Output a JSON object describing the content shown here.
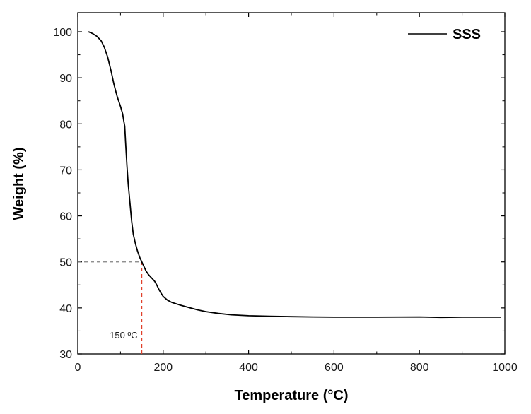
{
  "chart_data": {
    "type": "line",
    "xlabel": "Temperature (°C)",
    "ylabel": "Weight (%)",
    "xlim": [
      0,
      1000
    ],
    "ylim": [
      30,
      102
    ],
    "x_ticks": [
      0,
      200,
      400,
      600,
      800,
      1000
    ],
    "y_ticks": [
      30,
      40,
      50,
      60,
      70,
      80,
      90,
      100
    ],
    "grid": false,
    "legend_position": "top-right",
    "series": [
      {
        "name": "SSS",
        "color": "#000000",
        "x": [
          25,
          35,
          45,
          55,
          62,
          70,
          78,
          85,
          92,
          100,
          105,
          108,
          110,
          112,
          115,
          118,
          122,
          126,
          130,
          135,
          140,
          145,
          150,
          155,
          160,
          165,
          170,
          175,
          180,
          185,
          190,
          195,
          200,
          210,
          220,
          240,
          260,
          280,
          300,
          330,
          360,
          400,
          450,
          500,
          550,
          600,
          700,
          800,
          850,
          900,
          990
        ],
        "y": [
          100,
          99.6,
          99,
          98,
          96.7,
          94.5,
          91.5,
          88.5,
          86,
          83.8,
          82.2,
          80.5,
          79.5,
          76,
          71,
          67,
          63,
          59,
          56,
          54,
          52.3,
          51,
          50,
          49,
          48,
          47.3,
          46.8,
          46.3,
          45.8,
          45,
          44,
          43.2,
          42.5,
          41.7,
          41.2,
          40.6,
          40.1,
          39.6,
          39.2,
          38.8,
          38.5,
          38.3,
          38.2,
          38.1,
          38.05,
          38,
          38,
          38.05,
          37.95,
          38,
          38
        ]
      }
    ],
    "reference_lines": [
      {
        "color": "#808080",
        "from": {
          "x": 0,
          "y": 50
        },
        "to": {
          "x": 150,
          "y": 50
        }
      },
      {
        "color": "#e0402a",
        "from": {
          "x": 150,
          "y": 30
        },
        "to": {
          "x": 150,
          "y": 50
        }
      }
    ],
    "annotation": {
      "text": "150 ºC",
      "x": 150,
      "y": 30
    }
  }
}
